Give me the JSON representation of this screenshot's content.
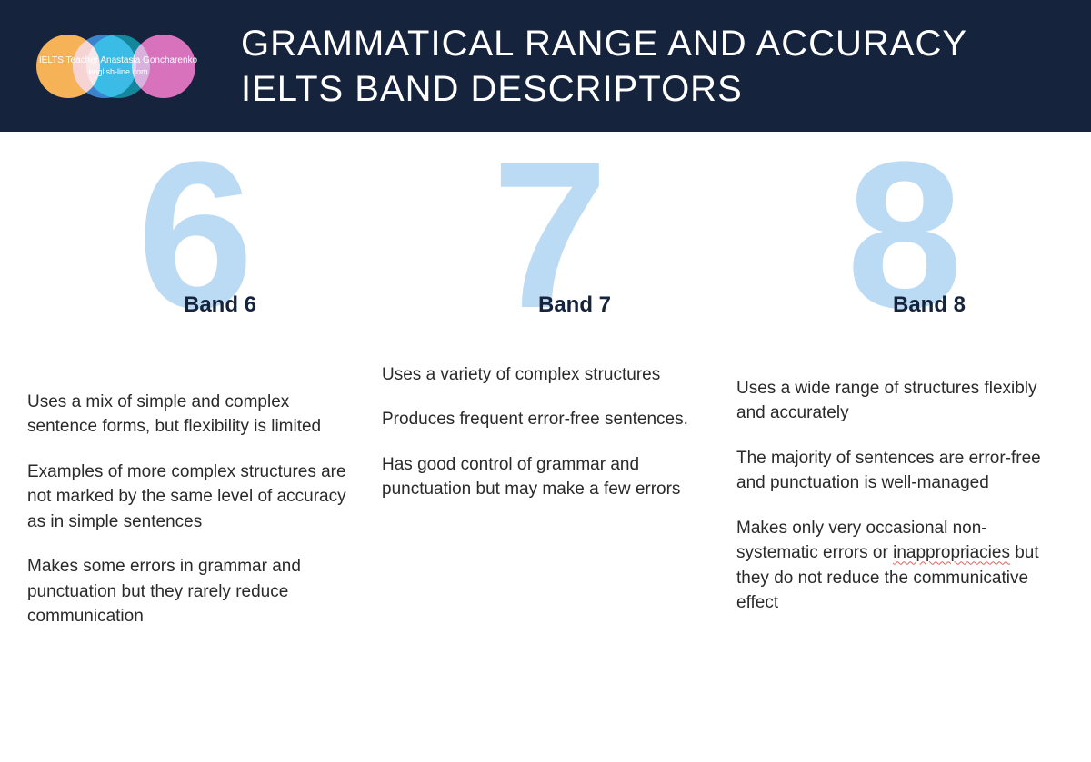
{
  "header": {
    "logo": {
      "line1": "IELTS Teacher Anastasia Goncharenko",
      "line2": "english-line.com",
      "circle_colors": [
        "#f5a623",
        "#00a5b5",
        "#2d7dd2",
        "#d45ba7"
      ]
    },
    "title_line1": "GRAMMATICAL RANGE AND ACCURACY",
    "title_line2": "IELTS BAND DESCRIPTORS",
    "bg_color": "#15233c",
    "title_color": "#ffffff"
  },
  "styling": {
    "big_number_color": "#bbdbf5",
    "band_label_color": "#15233c",
    "body_text_color": "#2a2a2a",
    "big_number_fontsize": 230,
    "band_label_fontsize": 24,
    "body_fontsize": 19,
    "title_fontsize": 40,
    "page_bg": "#ffffff"
  },
  "columns": [
    {
      "number": "6",
      "label": "Band 6",
      "paragraphs": [
        "Uses a mix of simple and complex sentence forms, but flexibility is limited",
        "Examples of more complex structures are not marked by the same level of accuracy as in simple sentences",
        "Makes some errors in grammar and punctuation but they rarely reduce communication"
      ]
    },
    {
      "number": "7",
      "label": "Band 7",
      "paragraphs": [
        "Uses a variety of complex structures",
        "Produces frequent error-free sentences.",
        "Has good control of grammar and punctuation but may make a few errors"
      ]
    },
    {
      "number": "8",
      "label": "Band 8",
      "paragraphs": [
        "Uses a wide range of structures flexibly and accurately",
        "The majority of sentences are error-free and punctuation is well-managed",
        "Makes only very occasional non-systematic errors or <span class=\"squiggle\">inappropriacies</span> but they do not reduce the communicative effect"
      ]
    }
  ]
}
